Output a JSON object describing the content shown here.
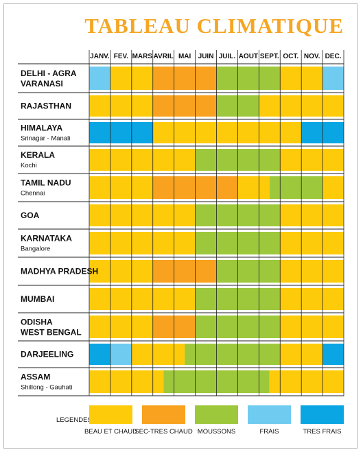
{
  "title": "TABLEAU CLIMATIQUE",
  "colors": {
    "beau": "#fecb0a",
    "chaud": "#f9a21f",
    "mousson": "#9dc83c",
    "frais": "#6fcbf0",
    "tresfrais": "#0aa5e3"
  },
  "chart_data": {
    "type": "table",
    "months": [
      "JANV.",
      "FEV.",
      "MARS",
      "AVRIL",
      "MAI",
      "JUIN",
      "JUIL.",
      "AOUT",
      "SEPT.",
      "OCT.",
      "NOV.",
      "DEC."
    ],
    "regions": [
      {
        "name": [
          "DELHI - AGRA",
          "VARANASI"
        ],
        "sub": "",
        "segments": [
          [
            "frais",
            0,
            1
          ],
          [
            "beau",
            1,
            3
          ],
          [
            "chaud",
            3,
            6
          ],
          [
            "mousson",
            6,
            9
          ],
          [
            "beau",
            9,
            11
          ],
          [
            "frais",
            11,
            12
          ]
        ]
      },
      {
        "name": [
          "RAJASTHAN"
        ],
        "sub": "",
        "segments": [
          [
            "beau",
            0,
            3
          ],
          [
            "chaud",
            3,
            6
          ],
          [
            "mousson",
            6,
            8
          ],
          [
            "beau",
            8,
            12
          ]
        ]
      },
      {
        "name": [
          "HIMALAYA"
        ],
        "sub": "Srinagar - Manali",
        "segments": [
          [
            "tresfrais",
            0,
            3
          ],
          [
            "beau",
            3,
            10
          ],
          [
            "tresfrais",
            10,
            12
          ]
        ]
      },
      {
        "name": [
          "KERALA"
        ],
        "sub": "Kochi",
        "segments": [
          [
            "beau",
            0,
            5
          ],
          [
            "mousson",
            5,
            9
          ],
          [
            "beau",
            9,
            12
          ]
        ]
      },
      {
        "name": [
          "TAMIL NADU"
        ],
        "sub": "Chennai",
        "segments": [
          [
            "beau",
            0,
            3
          ],
          [
            "chaud",
            3,
            7
          ],
          [
            "beau",
            7,
            8.5
          ],
          [
            "mousson",
            8.5,
            11
          ],
          [
            "beau",
            11,
            12
          ]
        ]
      },
      {
        "name": [
          "GOA"
        ],
        "sub": "",
        "segments": [
          [
            "beau",
            0,
            5
          ],
          [
            "mousson",
            5,
            9
          ],
          [
            "beau",
            9,
            12
          ]
        ]
      },
      {
        "name": [
          "KARNATAKA"
        ],
        "sub": "Bangalore",
        "segments": [
          [
            "beau",
            0,
            5
          ],
          [
            "mousson",
            5,
            9
          ],
          [
            "beau",
            9,
            12
          ]
        ]
      },
      {
        "name": [
          "MADHYA PRADESH"
        ],
        "sub": "",
        "segments": [
          [
            "beau",
            0,
            3
          ],
          [
            "chaud",
            3,
            6
          ],
          [
            "mousson",
            6,
            9
          ],
          [
            "beau",
            9,
            12
          ]
        ]
      },
      {
        "name": [
          "MUMBAI"
        ],
        "sub": "",
        "segments": [
          [
            "beau",
            0,
            5
          ],
          [
            "mousson",
            5,
            9
          ],
          [
            "beau",
            9,
            12
          ]
        ]
      },
      {
        "name": [
          "ODISHA",
          "WEST BENGAL"
        ],
        "sub": "",
        "segments": [
          [
            "beau",
            0,
            3
          ],
          [
            "chaud",
            3,
            5
          ],
          [
            "mousson",
            5,
            9
          ],
          [
            "beau",
            9,
            12
          ]
        ]
      },
      {
        "name": [
          "DARJEELING"
        ],
        "sub": "",
        "segments": [
          [
            "tresfrais",
            0,
            1
          ],
          [
            "frais",
            1,
            2
          ],
          [
            "beau",
            2,
            4.5
          ],
          [
            "mousson",
            4.5,
            9
          ],
          [
            "beau",
            9,
            11
          ],
          [
            "tresfrais",
            11,
            12
          ]
        ]
      },
      {
        "name": [
          "ASSAM"
        ],
        "sub": "Shillong - Gauhati",
        "segments": [
          [
            "beau",
            0,
            3.5
          ],
          [
            "mousson",
            3.5,
            8.5
          ],
          [
            "beau",
            8.5,
            12
          ]
        ]
      }
    ],
    "legend_title": "LEGENDES",
    "legend": [
      {
        "key": "beau",
        "label": "BEAU ET CHAUD"
      },
      {
        "key": "chaud",
        "label": "SEC-TRES CHAUD"
      },
      {
        "key": "mousson",
        "label": "MOUSSONS"
      },
      {
        "key": "frais",
        "label": "FRAIS"
      },
      {
        "key": "tresfrais",
        "label": "TRES FRAIS"
      }
    ]
  }
}
